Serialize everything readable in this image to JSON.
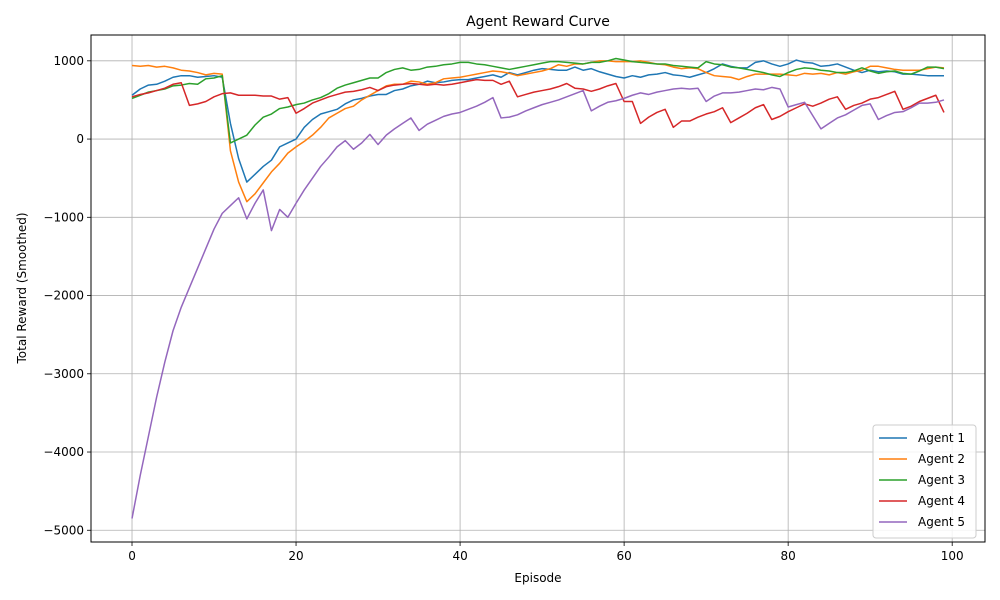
{
  "chart_data": {
    "type": "line",
    "title": "Agent Reward Curve",
    "xlabel": "Episode",
    "ylabel": "Total Reward (Smoothed)",
    "xlim": [
      -5,
      104
    ],
    "ylim": [
      -5150,
      1330
    ],
    "xticks": [
      0,
      20,
      40,
      60,
      80,
      100
    ],
    "yticks": [
      -5000,
      -4000,
      -3000,
      -2000,
      -1000,
      0,
      1000
    ],
    "grid": true,
    "legend_position": "bottom-right",
    "x": [
      0,
      1,
      2,
      3,
      4,
      5,
      6,
      7,
      8,
      9,
      10,
      11,
      12,
      13,
      14,
      15,
      16,
      17,
      18,
      19,
      20,
      21,
      22,
      23,
      24,
      25,
      26,
      27,
      28,
      29,
      30,
      31,
      32,
      33,
      34,
      35,
      36,
      37,
      38,
      39,
      40,
      41,
      42,
      43,
      44,
      45,
      46,
      47,
      48,
      49,
      50,
      51,
      52,
      53,
      54,
      55,
      56,
      57,
      58,
      59,
      60,
      61,
      62,
      63,
      64,
      65,
      66,
      67,
      68,
      69,
      70,
      71,
      72,
      73,
      74,
      75,
      76,
      77,
      78,
      79,
      80,
      81,
      82,
      83,
      84,
      85,
      86,
      87,
      88,
      89,
      90,
      91,
      92,
      93,
      94,
      95,
      96,
      97,
      98,
      99
    ],
    "series": [
      {
        "name": "Agent 1",
        "color": "#1f77b4",
        "values": [
          560,
          640,
          690,
          700,
          740,
          790,
          810,
          810,
          790,
          800,
          810,
          790,
          200,
          -250,
          -550,
          -450,
          -350,
          -270,
          -100,
          -50,
          0,
          150,
          250,
          320,
          350,
          380,
          450,
          500,
          520,
          550,
          570,
          570,
          620,
          640,
          680,
          700,
          740,
          720,
          730,
          750,
          760,
          760,
          780,
          800,
          820,
          790,
          850,
          820,
          850,
          880,
          900,
          890,
          880,
          880,
          920,
          880,
          900,
          860,
          830,
          800,
          780,
          810,
          790,
          820,
          830,
          850,
          820,
          810,
          790,
          820,
          850,
          900,
          960,
          930,
          910,
          910,
          980,
          1000,
          960,
          930,
          960,
          1010,
          980,
          970,
          930,
          940,
          960,
          920,
          880,
          850,
          880,
          860,
          870,
          860,
          830,
          830,
          820,
          810,
          810,
          810
        ]
      },
      {
        "name": "Agent 2",
        "color": "#ff7f0e",
        "values": [
          940,
          930,
          940,
          920,
          930,
          910,
          880,
          870,
          850,
          820,
          840,
          830,
          -150,
          -550,
          -800,
          -700,
          -560,
          -420,
          -310,
          -180,
          -100,
          -30,
          50,
          150,
          270,
          330,
          390,
          420,
          500,
          560,
          620,
          680,
          700,
          700,
          740,
          730,
          700,
          720,
          770,
          780,
          790,
          810,
          830,
          850,
          870,
          860,
          840,
          810,
          830,
          850,
          870,
          900,
          950,
          930,
          960,
          960,
          980,
          1000,
          1000,
          990,
          990,
          990,
          1000,
          980,
          960,
          950,
          920,
          900,
          910,
          900,
          850,
          810,
          800,
          790,
          760,
          800,
          830,
          830,
          830,
          830,
          820,
          810,
          840,
          830,
          840,
          820,
          850,
          830,
          860,
          880,
          930,
          930,
          910,
          890,
          880,
          880,
          880,
          900,
          920,
          910
        ]
      },
      {
        "name": "Agent 3",
        "color": "#2ca02c",
        "values": [
          520,
          560,
          600,
          620,
          640,
          680,
          690,
          710,
          700,
          770,
          780,
          810,
          -50,
          0,
          50,
          180,
          280,
          320,
          390,
          410,
          440,
          460,
          500,
          530,
          580,
          650,
          690,
          720,
          750,
          780,
          780,
          850,
          890,
          910,
          880,
          890,
          920,
          930,
          950,
          960,
          980,
          980,
          960,
          950,
          930,
          910,
          890,
          910,
          930,
          950,
          970,
          990,
          990,
          980,
          970,
          960,
          980,
          980,
          1000,
          1030,
          1010,
          990,
          980,
          970,
          960,
          960,
          940,
          930,
          920,
          910,
          990,
          960,
          950,
          920,
          910,
          890,
          870,
          850,
          820,
          800,
          850,
          890,
          910,
          900,
          880,
          870,
          850,
          850,
          870,
          910,
          870,
          840,
          860,
          870,
          840,
          830,
          870,
          920,
          920,
          900
        ]
      },
      {
        "name": "Agent 4",
        "color": "#d62728",
        "values": [
          540,
          570,
          590,
          620,
          650,
          700,
          720,
          430,
          450,
          480,
          540,
          580,
          590,
          560,
          560,
          560,
          550,
          550,
          510,
          530,
          330,
          390,
          460,
          500,
          540,
          570,
          600,
          610,
          630,
          660,
          620,
          670,
          690,
          700,
          710,
          700,
          690,
          700,
          690,
          700,
          720,
          740,
          760,
          750,
          750,
          700,
          740,
          540,
          570,
          600,
          620,
          640,
          670,
          710,
          650,
          640,
          610,
          640,
          680,
          710,
          480,
          480,
          200,
          280,
          340,
          380,
          150,
          230,
          230,
          280,
          320,
          350,
          400,
          210,
          270,
          330,
          400,
          440,
          250,
          290,
          350,
          400,
          450,
          420,
          460,
          510,
          540,
          380,
          430,
          460,
          510,
          530,
          570,
          610,
          380,
          420,
          480,
          520,
          560,
          340
        ]
      },
      {
        "name": "Agent 5",
        "color": "#9467bd",
        "values": [
          -4850,
          -4300,
          -3800,
          -3300,
          -2850,
          -2450,
          -2150,
          -1900,
          -1650,
          -1400,
          -1150,
          -950,
          -850,
          -750,
          -1020,
          -820,
          -650,
          -1170,
          -900,
          -1000,
          -820,
          -650,
          -500,
          -350,
          -230,
          -100,
          -20,
          -130,
          -50,
          60,
          -70,
          50,
          130,
          200,
          270,
          110,
          190,
          240,
          290,
          320,
          340,
          380,
          420,
          470,
          530,
          270,
          280,
          310,
          360,
          400,
          440,
          470,
          500,
          540,
          580,
          620,
          360,
          420,
          470,
          490,
          520,
          560,
          590,
          570,
          600,
          620,
          640,
          650,
          640,
          650,
          480,
          550,
          590,
          590,
          600,
          620,
          640,
          630,
          660,
          640,
          410,
          440,
          470,
          300,
          130,
          200,
          270,
          310,
          370,
          430,
          450,
          250,
          300,
          340,
          350,
          400,
          460,
          460,
          470,
          500
        ]
      }
    ]
  }
}
